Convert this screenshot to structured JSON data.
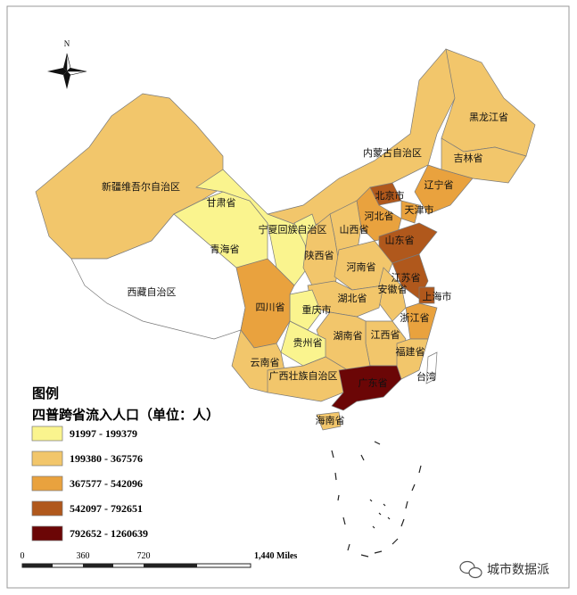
{
  "map": {
    "compass": {
      "label": "N"
    },
    "regions": [
      {
        "name": "新疆维吾尔自治区",
        "class": 1
      },
      {
        "name": "西藏自治区",
        "class": null
      },
      {
        "name": "青海省",
        "class": 0
      },
      {
        "name": "甘肃省",
        "class": 0
      },
      {
        "name": "内蒙古自治区",
        "class": 1
      },
      {
        "name": "黑龙江省",
        "class": 1
      },
      {
        "name": "吉林省",
        "class": 1
      },
      {
        "name": "辽宁省",
        "class": 2
      },
      {
        "name": "河北省",
        "class": 2
      },
      {
        "name": "北京市",
        "class": 3
      },
      {
        "name": "天津市",
        "class": 2
      },
      {
        "name": "山西省",
        "class": 1
      },
      {
        "name": "宁夏回族自治区",
        "class": 0
      },
      {
        "name": "陕西省",
        "class": 1
      },
      {
        "name": "山东省",
        "class": 3
      },
      {
        "name": "河南省",
        "class": 1
      },
      {
        "name": "江苏省",
        "class": 3
      },
      {
        "name": "安徽省",
        "class": 1
      },
      {
        "name": "上海市",
        "class": 3
      },
      {
        "name": "湖北省",
        "class": 1
      },
      {
        "name": "重庆市",
        "class": 0
      },
      {
        "name": "四川省",
        "class": 2
      },
      {
        "name": "浙江省",
        "class": 2
      },
      {
        "name": "江西省",
        "class": 1
      },
      {
        "name": "湖南省",
        "class": 1
      },
      {
        "name": "贵州省",
        "class": 0
      },
      {
        "name": "福建省",
        "class": 1
      },
      {
        "name": "云南省",
        "class": 1
      },
      {
        "name": "广西壮族自治区",
        "class": 1
      },
      {
        "name": "广东省",
        "class": 4
      },
      {
        "name": "海南省",
        "class": 1
      },
      {
        "name": "台湾",
        "class": null
      }
    ],
    "legend": {
      "title": "图例",
      "subtitle": "四普跨省流入人口（单位：人）",
      "classes": [
        {
          "label": "91997 - 199379",
          "color": "#faf48e"
        },
        {
          "label": "199380 - 367576",
          "color": "#f2c66b"
        },
        {
          "label": "367577 - 542096",
          "color": "#e9a23e"
        },
        {
          "label": "542097 - 792651",
          "color": "#b0581c"
        },
        {
          "label": "792652 - 1260639",
          "color": "#6b0606"
        }
      ]
    },
    "scale_bar": {
      "labels": [
        "0",
        "360",
        "720",
        "1,440 Miles"
      ]
    },
    "watermark": "城市数据派"
  }
}
